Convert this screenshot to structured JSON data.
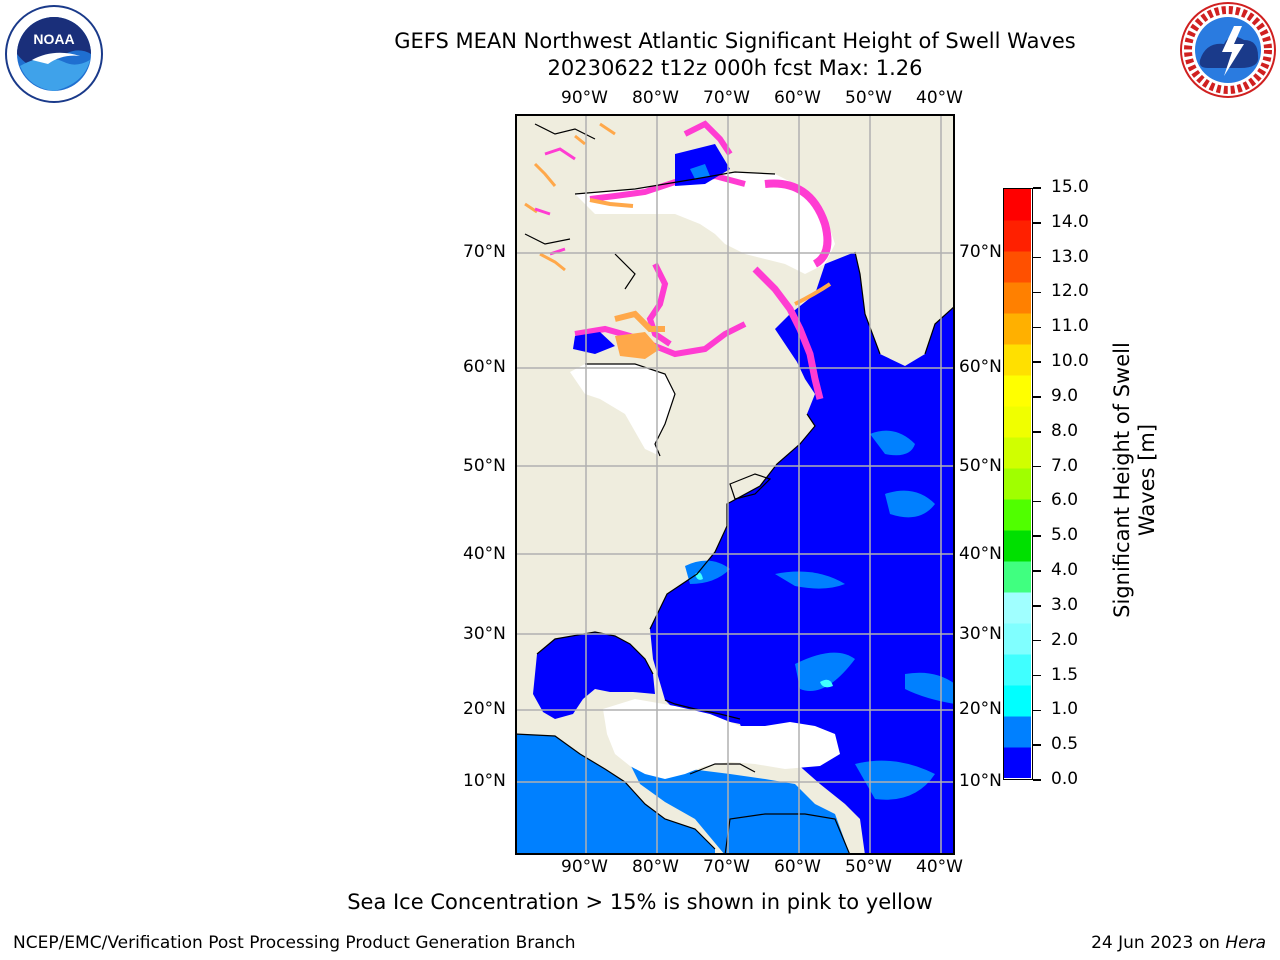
{
  "header": {
    "title_line1": "GEFS MEAN Northwest Atlantic Significant Height of Swell Waves",
    "title_line2": "20230622 t12z 000h fcst   Max: 1.26"
  },
  "logos": {
    "left": {
      "name": "NOAA logo",
      "text": "NOAA",
      "ring_text": "NATIONAL OCEANIC AND ATMOSPHERIC ADMINISTRATION · U.S. DEPARTMENT OF COMMERCE"
    },
    "right": {
      "name": "National Weather Service logo",
      "ring_text": "NATIONAL WEATHER SERVICE"
    }
  },
  "map": {
    "lon_labels": [
      "90°W",
      "80°W",
      "70°W",
      "60°W",
      "50°W",
      "40°W"
    ],
    "lat_labels": [
      "70°N",
      "60°N",
      "50°N",
      "40°N",
      "30°N",
      "20°N",
      "10°N"
    ],
    "colors": {
      "land": "#efedde",
      "ice_free_no_data": "#ffffff",
      "ocean_low": "#0000ff",
      "ocean_mid": "#0080ff",
      "ice_pink": "#ff3cd2",
      "ice_orange": "#ffa84a",
      "grid": "#b0b0b0"
    }
  },
  "colorbar": {
    "label": "Significant Height of Swell Waves [m]",
    "label_line1": "Significant Height of Swell",
    "label_line2": "Waves [m]",
    "ticks": [
      "15.0",
      "14.0",
      "13.0",
      "12.0",
      "11.0",
      "10.0",
      "9.0",
      "8.0",
      "7.0",
      "6.0",
      "5.0",
      "4.0",
      "3.0",
      "2.0",
      "1.5",
      "1.0",
      "0.5",
      "0.0"
    ],
    "colors_bottom_to_top": [
      "#0000ff",
      "#0080ff",
      "#00ffff",
      "#40ffff",
      "#80ffff",
      "#a0ffff",
      "#40ff80",
      "#00e000",
      "#50ff00",
      "#a0ff00",
      "#d0ff00",
      "#f0ff00",
      "#ffff00",
      "#ffe000",
      "#ffb000",
      "#ff8000",
      "#ff5000",
      "#ff2000",
      "#ff0000"
    ]
  },
  "note": "Sea Ice Concentration > 15% is shown in pink to yellow",
  "footer": {
    "left": "NCEP/EMC/Verification Post Processing Product Generation Branch",
    "right_prefix": "24 Jun 2023 on ",
    "right_host": "Hera"
  }
}
